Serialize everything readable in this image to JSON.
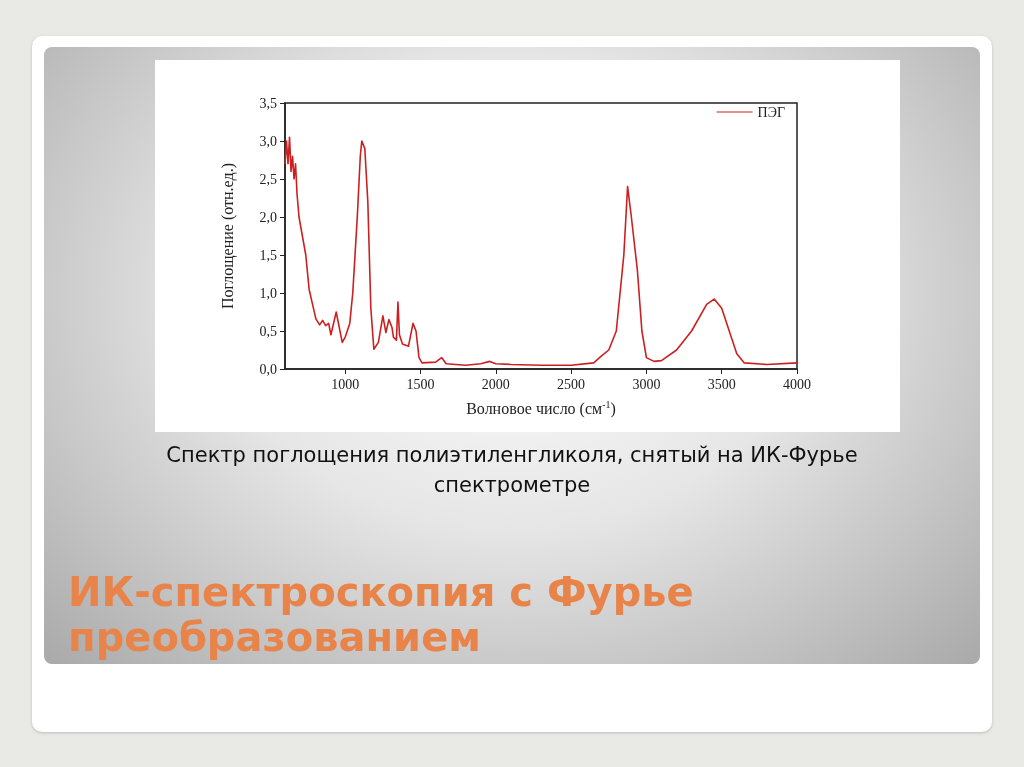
{
  "chart_data": {
    "type": "line",
    "title": "ИК-спектроскопия с Фурье преобразованием",
    "annotations": [
      "Спектр поглощения полиэтиленгликоля, снятый на ИК-Фурье спектрометре"
    ],
    "xlabel": "Волновое число (см$^{-1}$)",
    "ylabel": "Поглощение (отн.ед.)",
    "xlim": [
      600,
      4000
    ],
    "xticks": [
      1000,
      1500,
      2000,
      2500,
      3000,
      3500,
      4000
    ],
    "ylim": [
      0,
      3.5
    ],
    "yticks": [
      {
        "value": 0,
        "label": "0,0"
      },
      {
        "value": 0.5,
        "label": "0,5"
      },
      {
        "value": 1,
        "label": "1,0"
      },
      {
        "value": 1.5,
        "label": "1,5"
      },
      {
        "value": 2,
        "label": "2,0"
      },
      {
        "value": 2.5,
        "label": "2,5"
      },
      {
        "value": 3,
        "label": "3,0"
      },
      {
        "value": 3.5,
        "label": "3,5"
      }
    ],
    "grid": false,
    "legend": "top right",
    "marker": "none",
    "line_style": "solid",
    "series": [
      {
        "name": "ПЭГ",
        "color": "#cc2020",
        "x": [
          600,
          610,
          620,
          630,
          640,
          650,
          660,
          670,
          680,
          693,
          738,
          760,
          783,
          805,
          830,
          850,
          870,
          890,
          905,
          940,
          980,
          1000,
          1030,
          1050,
          1080,
          1100,
          1110,
          1130,
          1150,
          1170,
          1190,
          1220,
          1250,
          1270,
          1290,
          1310,
          1320,
          1340,
          1350,
          1360,
          1380,
          1420,
          1450,
          1470,
          1490,
          1510,
          1600,
          1640,
          1670,
          1800,
          1900,
          1960,
          2000,
          2100,
          2300,
          2500,
          2650,
          2700,
          2750,
          2800,
          2850,
          2875,
          2900,
          2940,
          2970,
          3000,
          3050,
          3100,
          3200,
          3300,
          3400,
          3450,
          3500,
          3550,
          3600,
          3650,
          3800,
          4000
        ],
        "values": [
          2.7,
          3.0,
          2.7,
          3.05,
          2.6,
          2.8,
          2.5,
          2.7,
          2.3,
          2.0,
          1.5,
          1.05,
          0.85,
          0.66,
          0.58,
          0.64,
          0.57,
          0.6,
          0.45,
          0.75,
          0.35,
          0.42,
          0.6,
          1.0,
          2.0,
          2.8,
          3.0,
          2.9,
          2.2,
          0.8,
          0.26,
          0.35,
          0.7,
          0.48,
          0.65,
          0.55,
          0.42,
          0.38,
          0.88,
          0.45,
          0.33,
          0.3,
          0.6,
          0.5,
          0.15,
          0.08,
          0.09,
          0.15,
          0.07,
          0.05,
          0.07,
          0.1,
          0.07,
          0.06,
          0.05,
          0.05,
          0.08,
          0.17,
          0.25,
          0.5,
          1.5,
          2.4,
          2.0,
          1.3,
          0.5,
          0.15,
          0.1,
          0.11,
          0.25,
          0.5,
          0.85,
          0.92,
          0.8,
          0.5,
          0.2,
          0.08,
          0.06,
          0.08
        ]
      }
    ]
  }
}
